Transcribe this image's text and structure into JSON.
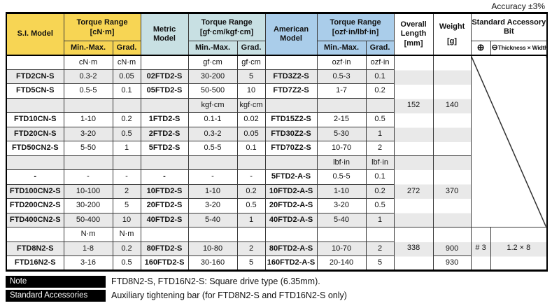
{
  "accuracy_note": "Accuracy ±3%",
  "colors": {
    "header_yellow": "#f7d554",
    "header_cyan": "#c8e0e3",
    "header_blue": "#aacdea",
    "row_shade": "#e9e9e9",
    "note_label_bg": "#000000"
  },
  "header": {
    "si_model": "S.I. Model",
    "torque_cnm_title": "Torque Range",
    "torque_cnm_unit": "[cN·m]",
    "metric_model": "Metric Model",
    "torque_gf_title": "Torque Range",
    "torque_gf_unit": "[gf·cm/kgf·cm]",
    "american_model": "American Model",
    "torque_ozf_title": "Torque Range",
    "torque_ozf_unit": "[ozf·in/lbf·in]",
    "min_max": "Min.-Max.",
    "grad": "Grad.",
    "overall_length_title": "Overall Length",
    "overall_length_unit": "[mm]",
    "weight_title": "Weight",
    "weight_unit": "[g]",
    "accessory_bit": "Standard Accessory Bit",
    "phillips_symbol": "⊕",
    "slotted_symbol": "⊖",
    "slotted_label": "Thickness × Width"
  },
  "table": {
    "rows": [
      {
        "shaded": false,
        "cells": [
          "",
          "cN·m",
          "cN·m",
          "",
          "gf·cm",
          "gf·cm",
          "",
          "ozf·in",
          "ozf·in"
        ]
      },
      {
        "shaded": true,
        "cells": [
          "FTD2CN-S",
          "0.3-2",
          "0.05",
          "02FTD2-S",
          "30-200",
          "5",
          "FTD3Z2-S",
          "0.5-3",
          "0.1"
        ]
      },
      {
        "shaded": false,
        "cells": [
          "FTD5CN-S",
          "0.5-5",
          "0.1",
          "05FTD2-S",
          "50-500",
          "10",
          "FTD7Z2-S",
          "1-7",
          "0.2"
        ]
      },
      {
        "shaded": true,
        "cells": [
          "",
          "",
          "",
          "",
          "kgf·cm",
          "kgf·cm",
          "",
          "",
          ""
        ]
      },
      {
        "shaded": false,
        "cells": [
          "FTD10CN-S",
          "1-10",
          "0.2",
          "1FTD2-S",
          "0.1-1",
          "0.02",
          "FTD15Z2-S",
          "2-15",
          "0.5"
        ]
      },
      {
        "shaded": true,
        "cells": [
          "FTD20CN-S",
          "3-20",
          "0.5",
          "2FTD2-S",
          "0.3-2",
          "0.05",
          "FTD30Z2-S",
          "5-30",
          "1"
        ]
      },
      {
        "shaded": false,
        "cells": [
          "FTD50CN2-S",
          "5-50",
          "1",
          "5FTD2-S",
          "0.5-5",
          "0.1",
          "FTD70Z2-S",
          "10-70",
          "2"
        ]
      },
      {
        "shaded": true,
        "cells": [
          "",
          "",
          "",
          "",
          "",
          "",
          "",
          "lbf·in",
          "lbf·in"
        ]
      },
      {
        "shaded": false,
        "cells": [
          "-",
          "-",
          "-",
          "-",
          "-",
          "-",
          "5FTD2-A-S",
          "0.5-5",
          "0.1"
        ]
      },
      {
        "shaded": true,
        "cells": [
          "FTD100CN2-S",
          "10-100",
          "2",
          "10FTD2-S",
          "1-10",
          "0.2",
          "10FTD2-A-S",
          "1-10",
          "0.2"
        ]
      },
      {
        "shaded": false,
        "cells": [
          "FTD200CN2-S",
          "30-200",
          "5",
          "20FTD2-S",
          "3-20",
          "0.5",
          "20FTD2-A-S",
          "3-20",
          "0.5"
        ]
      },
      {
        "shaded": true,
        "cells": [
          "FTD400CN2-S",
          "50-400",
          "10",
          "40FTD2-S",
          "5-40",
          "1",
          "40FTD2-A-S",
          "5-40",
          "1"
        ]
      },
      {
        "shaded": false,
        "cells": [
          "",
          "N·m",
          "N·m",
          "",
          "",
          "",
          "",
          "",
          ""
        ]
      },
      {
        "shaded": true,
        "cells": [
          "FTD8N2-S",
          "1-8",
          "0.2",
          "80FTD2-S",
          "10-80",
          "2",
          "80FTD2-A-S",
          "10-70",
          "2"
        ]
      },
      {
        "shaded": false,
        "cells": [
          "FTD16N2-S",
          "3-16",
          "0.5",
          "160FTD2-S",
          "30-160",
          "5",
          "160FTD2-A-S",
          "20-140",
          "5"
        ]
      }
    ],
    "merged": [
      {
        "overall_length": "152",
        "weight": "140"
      },
      {
        "overall_length": "272",
        "weight": "370"
      },
      {
        "overall_length": "338",
        "weight_top": "900",
        "weight_bottom": "930",
        "phillips_bit": "# 3",
        "slotted_bit": "1.2 × 8"
      }
    ]
  },
  "notes": [
    {
      "label": "Note",
      "text": "FTD8N2-S, FTD16N2-S: Square drive type (6.35mm)."
    },
    {
      "label": "Standard Accessories",
      "text": "Auxiliary tightening bar (for FTD8N2-S and FTD16N2-S only)"
    }
  ]
}
